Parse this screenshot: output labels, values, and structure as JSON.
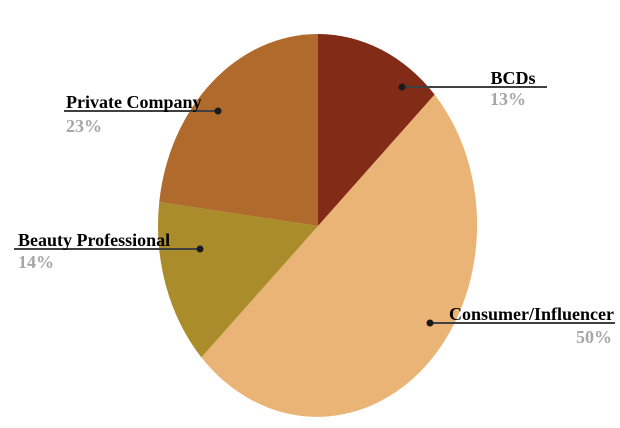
{
  "chart_data": {
    "type": "pie",
    "title": "",
    "shape": "ellipse",
    "start_angle_deg": 0,
    "direction": "clockwise",
    "legend_position": "outside-callouts",
    "background": "#ffffff",
    "label_text_color": "#000000",
    "percent_text_color": "#a6a6a6",
    "leader_line_color": "#404040",
    "leader_dot_color": "#1a1a1a",
    "slices": [
      {
        "label": "BCDs",
        "value": 13,
        "percent_label": "13%",
        "color": "#822b16"
      },
      {
        "label": "Consumer/Influencer",
        "value": 50,
        "percent_label": "50%",
        "color": "#ebb477"
      },
      {
        "label": "Beauty Professional",
        "value": 14,
        "percent_label": "14%",
        "color": "#ab8c2a"
      },
      {
        "label": "Private Company",
        "value": 23,
        "percent_label": "23%",
        "color": "#af6a2c"
      }
    ]
  }
}
